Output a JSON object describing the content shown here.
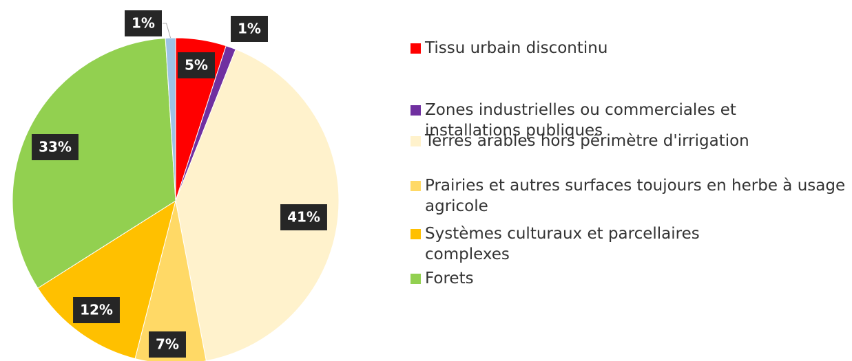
{
  "chart_data": {
    "type": "pie",
    "categories": [
      "Tissu urbain discontinu",
      "Zones industrielles ou commerciales et installations publiques",
      "Terres arables hors périmètre d'irrigation",
      "Prairies et autres surfaces toujours en herbe à usage agricole",
      "Systèmes culturaux et parcellaires complexes",
      "Forets",
      null
    ],
    "values": [
      5,
      1,
      41,
      7,
      12,
      33,
      1
    ],
    "value_labels": [
      "5%",
      "1%",
      "41%",
      "7%",
      "12%",
      "33%",
      "1%"
    ],
    "colors": [
      "#ff0000",
      "#7030a0",
      "#fff2cc",
      "#ffd966",
      "#ffc000",
      "#92d050",
      "#9dc3e6"
    ]
  }
}
